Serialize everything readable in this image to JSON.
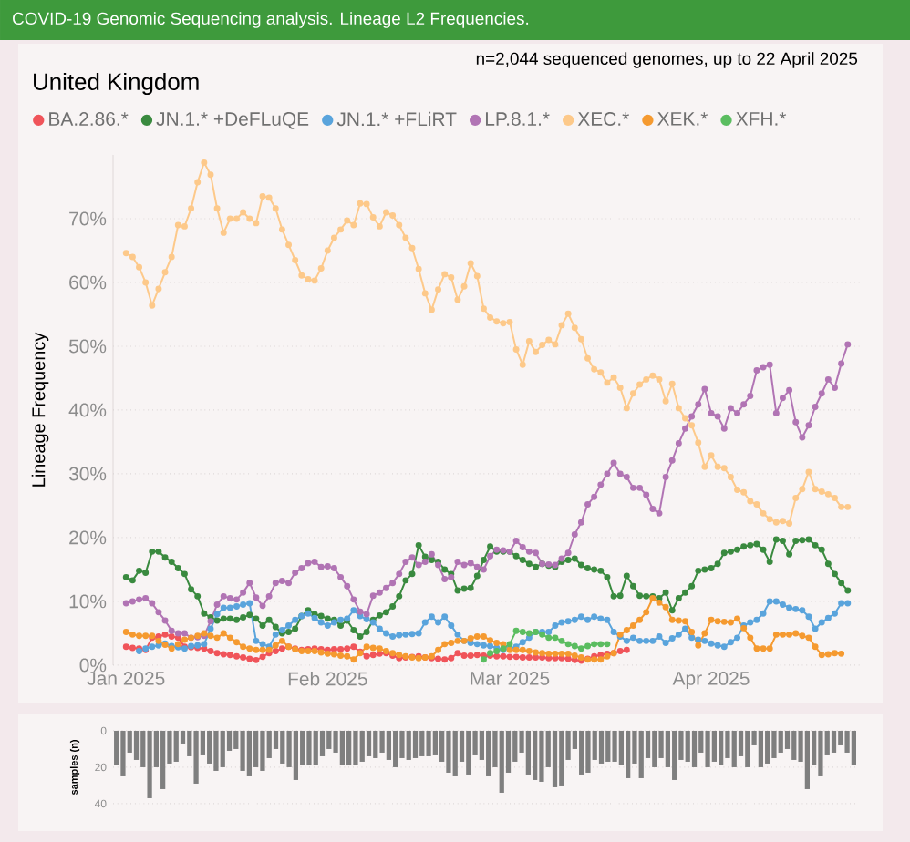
{
  "chart_data": [
    {
      "type": "line",
      "title": "United Kingdom",
      "ylabel": "Lineage Frequency",
      "annotations": [
        "COVID-19 Genomic Sequencing analysis. Lineage L2 Frequencies.",
        "n=2,044 sequenced genomes, up to 22 April 2025"
      ],
      "x": [
        "2025-01-01",
        "2025-01-02",
        "2025-01-03",
        "2025-01-04",
        "2025-01-05",
        "2025-01-06",
        "2025-01-07",
        "2025-01-08",
        "2025-01-09",
        "2025-01-10",
        "2025-01-11",
        "2025-01-12",
        "2025-01-13",
        "2025-01-14",
        "2025-01-15",
        "2025-01-16",
        "2025-01-17",
        "2025-01-18",
        "2025-01-19",
        "2025-01-20",
        "2025-01-21",
        "2025-01-22",
        "2025-01-23",
        "2025-01-24",
        "2025-01-25",
        "2025-01-26",
        "2025-01-27",
        "2025-01-28",
        "2025-01-29",
        "2025-01-30",
        "2025-01-31",
        "2025-02-01",
        "2025-02-02",
        "2025-02-03",
        "2025-02-04",
        "2025-02-05",
        "2025-02-06",
        "2025-02-07",
        "2025-02-08",
        "2025-02-09",
        "2025-02-10",
        "2025-02-11",
        "2025-02-12",
        "2025-02-13",
        "2025-02-14",
        "2025-02-15",
        "2025-02-16",
        "2025-02-17",
        "2025-02-18",
        "2025-02-19",
        "2025-02-20",
        "2025-02-21",
        "2025-02-22",
        "2025-02-23",
        "2025-02-24",
        "2025-02-25",
        "2025-02-26",
        "2025-02-27",
        "2025-02-28",
        "2025-03-01",
        "2025-03-02",
        "2025-03-03",
        "2025-03-04",
        "2025-03-05",
        "2025-03-06",
        "2025-03-07",
        "2025-03-08",
        "2025-03-09",
        "2025-03-10",
        "2025-03-11",
        "2025-03-12",
        "2025-03-13",
        "2025-03-14",
        "2025-03-15",
        "2025-03-16",
        "2025-03-17",
        "2025-03-18",
        "2025-03-19",
        "2025-03-20",
        "2025-03-21",
        "2025-03-22",
        "2025-03-23",
        "2025-03-24",
        "2025-03-25",
        "2025-03-26",
        "2025-03-27",
        "2025-03-28",
        "2025-03-29",
        "2025-03-30",
        "2025-03-31",
        "2025-04-01",
        "2025-04-02",
        "2025-04-03",
        "2025-04-04",
        "2025-04-05",
        "2025-04-06",
        "2025-04-07",
        "2025-04-08",
        "2025-04-09",
        "2025-04-10",
        "2025-04-11",
        "2025-04-12",
        "2025-04-13",
        "2025-04-14",
        "2025-04-15",
        "2025-04-16",
        "2025-04-17",
        "2025-04-18",
        "2025-04-19",
        "2025-04-20",
        "2025-04-21",
        "2025-04-22"
      ],
      "xlim": [
        "2024-12-30",
        "2025-04-24"
      ],
      "ylim": [
        0,
        80
      ],
      "xticks": [
        {
          "value": "2025-01-01",
          "label": "Jan 2025"
        },
        {
          "value": "2025-02-01",
          "label": "Feb 2025"
        },
        {
          "value": "2025-03-01",
          "label": "Mar 2025"
        },
        {
          "value": "2025-04-01",
          "label": "Apr 2025"
        }
      ],
      "yticks": [
        {
          "value": 0,
          "label": "0%"
        },
        {
          "value": 10,
          "label": "10%"
        },
        {
          "value": 20,
          "label": "20%"
        },
        {
          "value": 30,
          "label": "30%"
        },
        {
          "value": 40,
          "label": "40%"
        },
        {
          "value": 50,
          "label": "50%"
        },
        {
          "value": 60,
          "label": "60%"
        },
        {
          "value": 70,
          "label": "70%"
        }
      ],
      "grid": "y",
      "legend": "top left",
      "marker": "circle",
      "series": [
        {
          "name": "BA.2.86.*",
          "color": "#f0545a",
          "values": [
            2.9,
            2.7,
            2.6,
            2.4,
            4.3,
            4.5,
            4.8,
            4.5,
            4.3,
            2.9,
            2.8,
            2.7,
            2.6,
            2.2,
            1.9,
            1.7,
            1.6,
            1.4,
            1.2,
            1,
            0.8,
            1.3,
            1.9,
            2.2,
            2.6,
            2.9,
            2.6,
            2.4,
            2.5,
            2.6,
            2.5,
            2.4,
            2.5,
            2.5,
            2.6,
            2.9,
            2.1,
            1.4,
            1.6,
            1.8,
            1.9,
            1.5,
            1.1,
            1.2,
            1.3,
            1.4,
            1.2,
            1.1,
            1,
            0.9,
            1.1,
            1.9,
            1.5,
            1.5,
            1.6,
            1.5,
            1.5,
            1.4,
            1.4,
            1.3,
            1.3,
            1.2,
            1.2,
            1.2,
            1.2,
            1.1,
            1.1,
            1.1,
            1,
            0.8,
            0.7,
            1,
            1.4,
            1.6,
            1.8,
            1.9,
            2.2,
            2.4,
            null,
            null,
            null,
            null,
            null,
            null,
            null,
            null,
            null,
            null,
            null,
            null,
            null,
            null,
            null,
            null,
            null,
            null,
            null,
            null,
            null,
            null,
            null,
            null,
            null,
            null,
            null,
            null,
            null,
            null,
            null,
            null,
            null,
            null
          ]
        },
        {
          "name": "JN.1.* +DeFLuQE",
          "color": "#3a8a3f",
          "values": [
            13.8,
            13.3,
            14.8,
            14.5,
            17.8,
            17.8,
            16.9,
            16.2,
            15.2,
            14.3,
            11.9,
            10.8,
            8.1,
            7.5,
            7,
            7.3,
            7.3,
            7.1,
            7.5,
            7.9,
            7.3,
            6.2,
            7.1,
            6,
            5,
            5.2,
            5.7,
            7.7,
            8.6,
            8,
            7.7,
            7.3,
            7.1,
            6.2,
            7,
            5.5,
            4.5,
            5.2,
            7.1,
            7.8,
            8.3,
            9.2,
            10.8,
            13.3,
            14.3,
            18.8,
            17,
            16.5,
            16.2,
            15,
            14.3,
            11.7,
            12,
            12.1,
            14,
            16.5,
            18.6,
            17.8,
            17.8,
            17.8,
            17.1,
            16.5,
            15.9,
            15.4,
            15.9,
            15.6,
            15.4,
            16.2,
            16.5,
            16.7,
            15.7,
            15.2,
            15,
            14.8,
            13.8,
            10.8,
            10.9,
            14,
            12.4,
            10.9,
            10.8,
            10.8,
            10.5,
            11.4,
            8.6,
            10.5,
            11.4,
            12.4,
            14.8,
            15,
            15.2,
            15.9,
            17.6,
            17.8,
            18.1,
            18.6,
            18.8,
            19,
            18.1,
            16.2,
            19.7,
            19.5,
            17.4,
            19.5,
            19.6,
            19.7,
            18.8,
            18.1,
            15.9,
            14.3,
            12.9,
            11.7
          ]
        },
        {
          "name": "JN.1.* +FLiRT",
          "color": "#5aa4dc",
          "values": [
            null,
            null,
            2.2,
            2.6,
            2.9,
            3.1,
            3.4,
            3,
            2.8,
            2.6,
            3,
            3.1,
            3.3,
            5.7,
            8,
            9,
            9,
            9.2,
            9.5,
            9.7,
            3.8,
            3.3,
            2.9,
            4.8,
            5.5,
            6.2,
            7.1,
            7.7,
            8.1,
            7.4,
            6.7,
            6.2,
            6.7,
            7.1,
            7.3,
            8.6,
            7.7,
            7.2,
            6.7,
            5.7,
            5,
            4.5,
            4.7,
            4.8,
            4.9,
            5,
            6.7,
            7.6,
            6.7,
            7.6,
            6.2,
            4.8,
            3.8,
            3.5,
            3.3,
            3.1,
            3,
            2.7,
            2.4,
            2.6,
            2.9,
            3.6,
            4.3,
            5.2,
            5.2,
            5.2,
            6.2,
            6.7,
            6.9,
            7.1,
            7.6,
            7.1,
            7.6,
            7.3,
            7.1,
            5.2,
            4.5,
            3.8,
            4.3,
            3.8,
            3.8,
            3.8,
            4.5,
            3.5,
            4.2,
            4.8,
            5.7,
            4.3,
            4,
            3.8,
            3.4,
            3.1,
            2.9,
            3.6,
            4.3,
            6.2,
            6.7,
            7.1,
            8.1,
            10,
            10,
            9.5,
            9,
            8.8,
            8.6,
            7.6,
            5.7,
            6.7,
            7.4,
            8.1,
            9.7,
            9.7
          ]
        },
        {
          "name": "LP.8.1.*",
          "color": "#b174b4",
          "values": [
            9.7,
            10,
            10.3,
            10.5,
            9.7,
            8.3,
            7,
            5.4,
            5,
            5,
            4.3,
            4.4,
            4.6,
            6.9,
            9.5,
            10.8,
            10.5,
            10.3,
            11.4,
            12.9,
            10.6,
            9.3,
            10.8,
            12.9,
            13.2,
            12.9,
            14.5,
            15.2,
            16,
            16.2,
            15.4,
            15.5,
            15.2,
            13.8,
            12.4,
            10.3,
            8.4,
            8,
            10.9,
            11.4,
            12.1,
            12.9,
            14.3,
            16.2,
            16.9,
            15.7,
            16.2,
            17.4,
            15.7,
            13.5,
            13.8,
            16.2,
            15.7,
            16,
            15.4,
            15,
            17.1,
            18.1,
            18,
            17.8,
            19.5,
            18.5,
            17.8,
            17.6,
            15.9,
            15.8,
            15.7,
            16.7,
            17.6,
            20.5,
            22.4,
            25.2,
            26.4,
            28.3,
            30,
            31.7,
            30,
            29.5,
            27.8,
            27.8,
            26.7,
            24.5,
            23.8,
            29.5,
            32.1,
            34.8,
            37.1,
            39,
            40.9,
            43.3,
            39.5,
            39,
            37.1,
            40.3,
            39.5,
            40.9,
            42.2,
            46.2,
            46.7,
            47.1,
            39.5,
            41.9,
            43.1,
            38.1,
            35.7,
            37.6,
            40.5,
            42.6,
            44.8,
            43.5,
            47.3,
            50.3
          ]
        },
        {
          "name": "XEC.*",
          "color": "#fdc98a",
          "values": [
            64.6,
            64,
            62.4,
            60,
            56.4,
            59,
            61.6,
            64,
            69,
            68.8,
            71.6,
            75.7,
            78.8,
            76.9,
            71.6,
            67.8,
            70,
            70,
            71,
            70,
            69.3,
            73.5,
            73.3,
            71.6,
            68.3,
            65.9,
            63.5,
            61.1,
            60.5,
            60.3,
            62.2,
            65,
            67,
            68.3,
            69.7,
            69,
            72.4,
            72.3,
            70.2,
            68.8,
            71,
            70.5,
            69,
            67,
            65.4,
            62.1,
            58.3,
            55.7,
            58.9,
            61.3,
            60.8,
            57.3,
            59.4,
            63,
            61,
            55.9,
            54.5,
            53.9,
            53.6,
            53.8,
            49.5,
            47.1,
            50.8,
            49.1,
            50.2,
            51,
            50.3,
            53.3,
            55.1,
            52.9,
            51.1,
            48.1,
            46.4,
            45.9,
            44.3,
            45.1,
            43.5,
            40.3,
            42.6,
            44,
            44.8,
            45.4,
            44.8,
            41.4,
            44.1,
            40.3,
            38.7,
            37.6,
            34.9,
            31.1,
            32.9,
            31.1,
            30.9,
            29.5,
            27.5,
            27.1,
            25.7,
            25.2,
            23.8,
            22.9,
            22.4,
            22.6,
            22.2,
            26.2,
            27.6,
            30.3,
            27.6,
            27.2,
            26.8,
            26.2,
            24.8,
            24.8
          ]
        },
        {
          "name": "XEK.*",
          "color": "#f59a30",
          "values": [
            5.2,
            4.8,
            4.6,
            4.6,
            4.6,
            3.8,
            3.2,
            2.6,
            3.3,
            4,
            4.3,
            4.6,
            5,
            4.6,
            4.3,
            5,
            4.3,
            3.6,
            2.9,
            2.6,
            2.4,
            2.4,
            2.4,
            3.1,
            3.8,
            2.9,
            2.5,
            2.2,
            2.2,
            2.2,
            2,
            1.8,
            1.7,
            1.5,
            1.4,
            0.9,
            1.9,
            2.9,
            2.7,
            2.6,
            2.2,
            1.9,
            1.6,
            1.4,
            1.2,
            1.1,
            1.2,
            1.4,
            2.4,
            3.3,
            3.5,
            3.8,
            3.8,
            4.2,
            4.5,
            4.5,
            3.9,
            3.5,
            3.3,
            2.4,
            2.4,
            2.4,
            2.2,
            2,
            1.9,
            1.8,
            1.8,
            1.8,
            1.8,
            1.5,
            1.2,
            0.9,
            0.9,
            0.9,
            1.4,
            1.9,
            4.8,
            5.5,
            6.2,
            7.1,
            8.3,
            10.5,
            9.8,
            9.1,
            7.1,
            7,
            6.9,
            5.2,
            3.1,
            5,
            7.1,
            6.9,
            6.8,
            6.7,
            7.3,
            5.8,
            4.3,
            2.6,
            2.6,
            2.6,
            4.8,
            4.8,
            4.8,
            5,
            4.6,
            4.3,
            2.9,
            1.6,
            1.7,
            1.9,
            1.8,
            null
          ]
        },
        {
          "name": "XFH.*",
          "color": "#5bbd60",
          "values": [
            null,
            null,
            null,
            null,
            null,
            null,
            null,
            null,
            null,
            null,
            null,
            null,
            null,
            null,
            null,
            null,
            null,
            null,
            null,
            null,
            null,
            null,
            null,
            null,
            null,
            null,
            null,
            null,
            null,
            null,
            null,
            null,
            null,
            null,
            null,
            null,
            null,
            null,
            null,
            null,
            null,
            null,
            null,
            null,
            null,
            null,
            null,
            null,
            null,
            null,
            null,
            null,
            null,
            null,
            null,
            0.9,
            1.9,
            2.2,
            2.6,
            3.3,
            5.4,
            5.2,
            5,
            5.2,
            4.8,
            4.3,
            4.3,
            3.8,
            3.3,
            3,
            2.6,
            3,
            3.3,
            3.3,
            3.3,
            null,
            null,
            null,
            null,
            null,
            null,
            null,
            null,
            null,
            null,
            null,
            null,
            null,
            null,
            null,
            null,
            null,
            null,
            null,
            null,
            null,
            null,
            null,
            null,
            null,
            null,
            null,
            null,
            null,
            null,
            null,
            null,
            null,
            null,
            null,
            null,
            null
          ]
        }
      ]
    },
    {
      "type": "bar",
      "ylabel": "samples (n)",
      "categories": [
        null,
        null,
        null,
        null,
        null,
        null,
        null,
        null,
        null,
        null,
        null,
        null,
        null,
        null,
        null,
        null,
        null,
        null,
        null,
        null,
        null,
        null,
        null,
        null,
        null,
        null,
        null,
        null,
        null,
        null,
        null,
        null,
        null,
        null,
        null,
        null,
        null,
        null,
        null,
        null,
        null,
        null,
        null,
        null,
        null,
        null,
        null,
        null,
        null,
        null,
        null,
        null,
        null,
        null,
        null,
        null,
        null,
        null,
        null,
        null,
        null,
        null,
        null,
        null,
        null,
        null,
        null,
        null,
        null,
        null,
        null,
        null,
        null,
        null,
        null,
        null,
        null,
        null,
        null,
        null,
        null,
        null,
        null,
        null,
        null,
        null,
        null,
        null,
        null,
        null,
        null,
        null,
        null,
        null,
        null,
        null,
        null,
        null,
        null,
        null,
        null,
        null,
        null,
        null,
        null,
        null,
        null,
        null,
        null,
        null,
        null,
        null
      ],
      "values": [
        19,
        25,
        12,
        16,
        20,
        37,
        20,
        32,
        18,
        17,
        7,
        14,
        29,
        13,
        18,
        22,
        20,
        11,
        10,
        22,
        25,
        20,
        22,
        15,
        10,
        18,
        20,
        27,
        19,
        19,
        19,
        14,
        10,
        12,
        19,
        19,
        19,
        17,
        14,
        15,
        12,
        16,
        20,
        15,
        16,
        15,
        14,
        14,
        13,
        17,
        23,
        25,
        17,
        24,
        13,
        16,
        25,
        20,
        34,
        23,
        17,
        12,
        24,
        27,
        28,
        20,
        31,
        30,
        16,
        10,
        24,
        23,
        16,
        18,
        17,
        17,
        19,
        26,
        18,
        26,
        15,
        20,
        15,
        20,
        27,
        16,
        17,
        20,
        12,
        20,
        17,
        19,
        15,
        20,
        14,
        20,
        8,
        20,
        18,
        15,
        12,
        10,
        16,
        17,
        32,
        19,
        25,
        13,
        12,
        8,
        12,
        19
      ],
      "color": "#7f7f7f",
      "ylim": [
        40,
        0
      ],
      "yticks": [
        0,
        20,
        40
      ],
      "grid": "y",
      "tick_labels": "y"
    }
  ]
}
